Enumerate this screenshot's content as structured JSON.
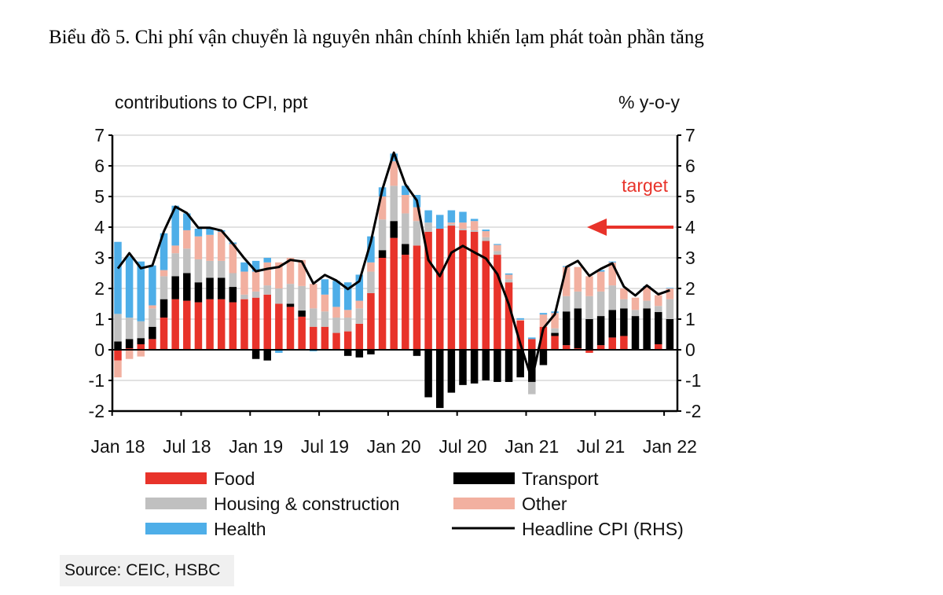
{
  "title": "Biểu đồ 5. Chi phí vận chuyển là nguyên nhân chính khiến lạm phát toàn phần tăng",
  "source": "Source: CEIC, HSBC",
  "chart_data": {
    "type": "bar",
    "stacked": true,
    "ylabel_left": "contributions to CPI, ppt",
    "ylabel_right": "% y-o-y",
    "ylim": [
      -2,
      7
    ],
    "y2lim": [
      -2,
      7
    ],
    "yticks": [
      7,
      6,
      5,
      4,
      3,
      2,
      1,
      0,
      -1,
      -2
    ],
    "grid": true,
    "legend_placement": "bottom",
    "categories": [
      "Jan 18",
      "Feb 18",
      "Mar 18",
      "Apr 18",
      "May 18",
      "Jun 18",
      "Jul 18",
      "Aug 18",
      "Sep 18",
      "Oct 18",
      "Nov 18",
      "Dec 18",
      "Jan 19",
      "Feb 19",
      "Mar 19",
      "Apr 19",
      "May 19",
      "Jun 19",
      "Jul 19",
      "Aug 19",
      "Sep 19",
      "Oct 19",
      "Nov 19",
      "Dec 19",
      "Jan 20",
      "Feb 20",
      "Mar 20",
      "Apr 20",
      "May 20",
      "Jun 20",
      "Jul 20",
      "Aug 20",
      "Sep 20",
      "Oct 20",
      "Nov 20",
      "Dec 20",
      "Jan 21",
      "Feb 21",
      "Mar 21",
      "Apr 21",
      "May 21",
      "Jun 21",
      "Jul 21",
      "Aug 21",
      "Sep 21",
      "Oct 21",
      "Nov 21",
      "Dec 21",
      "Jan 22"
    ],
    "x_tick_labels": [
      "Jan 18",
      "Jul 18",
      "Jan 19",
      "Jul 19",
      "Jan 20",
      "Jul 20",
      "Jan 21",
      "Jul 21",
      "Jan 22"
    ],
    "series": [
      {
        "name": "Food",
        "color": "#e8332a",
        "values": [
          -0.35,
          0.05,
          0.18,
          0.35,
          1.05,
          1.65,
          1.6,
          1.55,
          1.65,
          1.65,
          1.55,
          1.65,
          1.7,
          1.8,
          1.5,
          1.4,
          1.08,
          0.75,
          0.75,
          0.55,
          0.6,
          0.85,
          1.85,
          3.0,
          3.65,
          3.1,
          3.4,
          3.85,
          3.95,
          4.05,
          3.9,
          3.85,
          3.55,
          3.1,
          2.2,
          0.95,
          0.35,
          0.75,
          0.45,
          0.15,
          0.05,
          -0.1,
          0.15,
          0.4,
          0.45,
          0,
          0,
          0.18,
          0
        ]
      },
      {
        "name": "Transport",
        "color": "#000000",
        "values": [
          0.27,
          0.3,
          0.2,
          0.4,
          0.6,
          0.75,
          0.9,
          0.65,
          0.7,
          0.7,
          0.5,
          0,
          -0.3,
          -0.35,
          0,
          0.1,
          0.2,
          0,
          0,
          0,
          -0.2,
          -0.25,
          -0.15,
          0.25,
          0.55,
          0.35,
          -0.2,
          -1.55,
          -1.9,
          -1.4,
          -1.15,
          -1.1,
          -1.0,
          -1.05,
          -1.05,
          -0.9,
          -1.05,
          -0.5,
          0.1,
          1.1,
          1.3,
          1.0,
          0.95,
          0.9,
          0.9,
          1.1,
          1.35,
          1.05,
          1.0
        ]
      },
      {
        "name": "Housing & construction",
        "color": "#c0c0c0",
        "values": [
          0.9,
          0.7,
          0.55,
          0.6,
          0.75,
          0.75,
          0.8,
          0.75,
          0.55,
          0.55,
          0.45,
          0.15,
          0.2,
          0.3,
          0.5,
          0.65,
          0.8,
          0.6,
          0.5,
          0.5,
          0.45,
          0.5,
          0.7,
          1.0,
          1.15,
          1.0,
          0.8,
          0.3,
          0,
          0.05,
          0.05,
          0.05,
          0.12,
          0.12,
          0.1,
          0,
          -0.4,
          0,
          0.15,
          0.5,
          0.55,
          0.75,
          0.8,
          0.8,
          0.3,
          0.2,
          0.25,
          0.2,
          0.65
        ]
      },
      {
        "name": "Other",
        "color": "#f2b0a0",
        "values": [
          -0.55,
          -0.3,
          -0.22,
          0.1,
          0.2,
          0.25,
          0.6,
          0.75,
          0.85,
          0.95,
          0.95,
          0.75,
          0.65,
          0.75,
          0.85,
          0.85,
          0.85,
          0.8,
          0.55,
          0.35,
          0.25,
          0.25,
          0.3,
          0.75,
          0.8,
          0.6,
          0.45,
          0,
          0,
          0.05,
          0.2,
          0.3,
          0.2,
          0.2,
          0.15,
          0.03,
          0,
          0.4,
          0.5,
          0.95,
          0.8,
          0.65,
          0.65,
          0.75,
          0.35,
          0.4,
          0.45,
          0.35,
          0.35
        ]
      },
      {
        "name": "Health",
        "color": "#4eaee8",
        "values": [
          2.35,
          2.0,
          1.95,
          1.3,
          1.2,
          1.3,
          0.55,
          0.25,
          0.2,
          0.05,
          0.05,
          0.3,
          0.35,
          0.15,
          -0.1,
          0,
          0,
          -0.05,
          0.5,
          0.85,
          0.9,
          0.85,
          0.85,
          0.3,
          0.25,
          0.3,
          0.4,
          0.4,
          0.45,
          0.4,
          0.35,
          0.07,
          0.05,
          0.03,
          0.04,
          0.05,
          0.05,
          0.05,
          0.05,
          0.03,
          0,
          0,
          0.05,
          0.03,
          0,
          0,
          0.03,
          0,
          0.02
        ]
      }
    ],
    "line": {
      "name": "Headline CPI (RHS)",
      "color": "#000000",
      "axis": "right",
      "values": [
        2.65,
        3.15,
        2.66,
        2.75,
        3.86,
        4.67,
        4.46,
        3.98,
        3.98,
        3.89,
        3.46,
        2.98,
        2.56,
        2.64,
        2.7,
        2.93,
        2.88,
        2.16,
        2.44,
        2.26,
        1.98,
        2.24,
        3.52,
        5.23,
        6.43,
        5.4,
        4.87,
        2.93,
        2.4,
        3.17,
        3.39,
        3.18,
        2.98,
        2.47,
        1.48,
        0.19,
        -0.97,
        0.7,
        1.16,
        2.7,
        2.9,
        2.41,
        2.64,
        2.82,
        2.06,
        1.77,
        2.1,
        1.81,
        1.94
      ]
    },
    "annotation": {
      "text": "target",
      "color": "#e8332a",
      "value": 4,
      "axis": "right",
      "arrow": "left"
    }
  }
}
